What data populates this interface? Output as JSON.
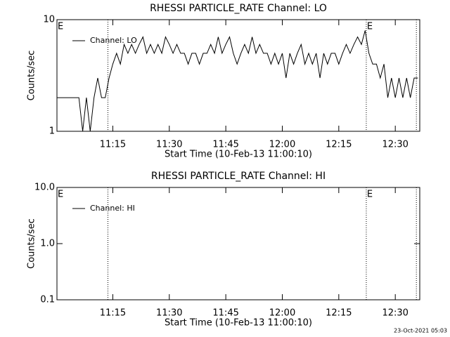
{
  "chart_data": [
    {
      "type": "line",
      "title": "RHESSI PARTICLE_RATE Channel: LO",
      "xlabel": "Start Time (10-Feb-13 11:00:10)",
      "ylabel": "Counts/sec",
      "log_y": true,
      "legend": "upper left",
      "xlim": [
        0.17,
        96.5
      ],
      "ylim": [
        1,
        10
      ],
      "xticks": [
        {
          "value": 15,
          "label": "11:15"
        },
        {
          "value": 30,
          "label": "11:30"
        },
        {
          "value": 45,
          "label": "11:45"
        },
        {
          "value": 60,
          "label": "12:00"
        },
        {
          "value": 75,
          "label": "12:15"
        },
        {
          "value": 90,
          "label": "12:30"
        }
      ],
      "yticks": [
        1,
        10
      ],
      "markers": [
        13.7,
        82.3,
        95.6
      ],
      "annotations": [
        {
          "text": "E",
          "x": 0.17
        },
        {
          "text": "E",
          "x": 82.3
        }
      ],
      "series": [
        {
          "name": "Channel: LO",
          "color": "#000000",
          "x": [
            0.17,
            1,
            2,
            3,
            4,
            5,
            6,
            7,
            8,
            9,
            10,
            11,
            12,
            13,
            14,
            15,
            16,
            17,
            18,
            19,
            20,
            21,
            22,
            23,
            24,
            25,
            26,
            27,
            28,
            29,
            30,
            31,
            32,
            33,
            34,
            35,
            36,
            37,
            38,
            39,
            40,
            41,
            42,
            43,
            44,
            45,
            46,
            47,
            48,
            49,
            50,
            51,
            52,
            53,
            54,
            55,
            56,
            57,
            58,
            59,
            60,
            61,
            62,
            63,
            64,
            65,
            66,
            67,
            68,
            69,
            70,
            71,
            72,
            73,
            74,
            75,
            76,
            77,
            78,
            79,
            80,
            81,
            82,
            83,
            84,
            85,
            86,
            87,
            88,
            89,
            90,
            91,
            92,
            93,
            94,
            95,
            96
          ],
          "values": [
            2,
            2,
            2,
            2,
            2,
            2,
            2,
            1,
            2,
            1,
            2,
            3,
            2,
            2,
            3,
            4,
            5,
            4,
            6,
            5,
            6,
            5,
            6,
            7,
            5,
            6,
            5,
            6,
            5,
            7,
            6,
            5,
            6,
            5,
            5,
            4,
            5,
            5,
            4,
            5,
            5,
            6,
            5,
            7,
            5,
            6,
            7,
            5,
            4,
            5,
            6,
            5,
            7,
            5,
            6,
            5,
            5,
            4,
            5,
            4,
            5,
            3,
            5,
            4,
            5,
            6,
            4,
            5,
            4,
            5,
            3,
            5,
            4,
            5,
            5,
            4,
            5,
            6,
            5,
            6,
            7,
            6,
            8,
            5,
            4,
            4,
            3,
            4,
            2,
            3,
            2,
            3,
            2,
            3,
            2,
            3,
            3
          ]
        }
      ]
    },
    {
      "type": "line",
      "title": "RHESSI PARTICLE_RATE Channel: HI",
      "xlabel": "Start Time (10-Feb-13 11:00:10)",
      "ylabel": "Counts/sec",
      "log_y": true,
      "legend": "upper left",
      "xlim": [
        0.17,
        96.5
      ],
      "ylim": [
        0.1,
        10
      ],
      "xticks": [
        {
          "value": 15,
          "label": "11:15"
        },
        {
          "value": 30,
          "label": "11:30"
        },
        {
          "value": 45,
          "label": "11:45"
        },
        {
          "value": 60,
          "label": "12:00"
        },
        {
          "value": 75,
          "label": "12:15"
        },
        {
          "value": 90,
          "label": "12:30"
        }
      ],
      "yticks": [
        {
          "value": 0.1,
          "label": "0.1"
        },
        {
          "value": 1,
          "label": "1.0"
        },
        {
          "value": 10,
          "label": "10.0"
        }
      ],
      "markers": [
        13.7,
        82.3,
        95.6
      ],
      "annotations": [
        {
          "text": "E",
          "x": 0.17
        },
        {
          "text": "E",
          "x": 82.3
        }
      ],
      "series": [
        {
          "name": "Channel: HI",
          "color": "#000000",
          "x": [],
          "values": []
        }
      ]
    }
  ],
  "footer": "23-Oct-2021 05:03"
}
